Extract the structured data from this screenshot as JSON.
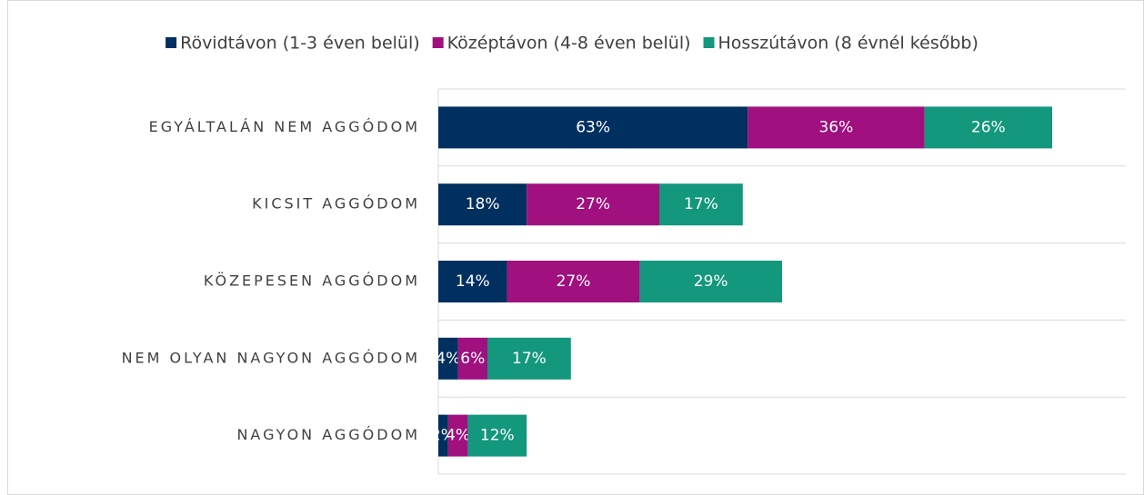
{
  "chart_data": {
    "type": "stacked-barh",
    "categories": [
      "EGYÁLTALÁN NEM AGGÓDOM",
      "KICSIT AGGÓDOM",
      "KÖZEPESEN AGGÓDOM",
      "NEM OLYAN NAGYON AGGÓDOM",
      "NAGYON AGGÓDOM"
    ],
    "series": [
      {
        "name": "Rövidtávon (1-3 éven belül)",
        "color": "#003060",
        "values": [
          63,
          18,
          14,
          4,
          2
        ],
        "value_labels": [
          "63%",
          "18%",
          "14%",
          "4%",
          "2%"
        ]
      },
      {
        "name": "Középtávon (4-8 éven belül)",
        "color": "#a0107f",
        "values": [
          36,
          27,
          27,
          6,
          4
        ],
        "value_labels": [
          "36%",
          "27%",
          "27%",
          "6%",
          "4%"
        ]
      },
      {
        "name": "Hosszútávon (8 évnél később)",
        "color": "#13977d",
        "values": [
          26,
          17,
          29,
          17,
          12
        ],
        "value_labels": [
          "26%",
          "17%",
          "29%",
          "17%",
          "12%"
        ]
      }
    ],
    "xlim": [
      0,
      140
    ],
    "legend": "top"
  }
}
